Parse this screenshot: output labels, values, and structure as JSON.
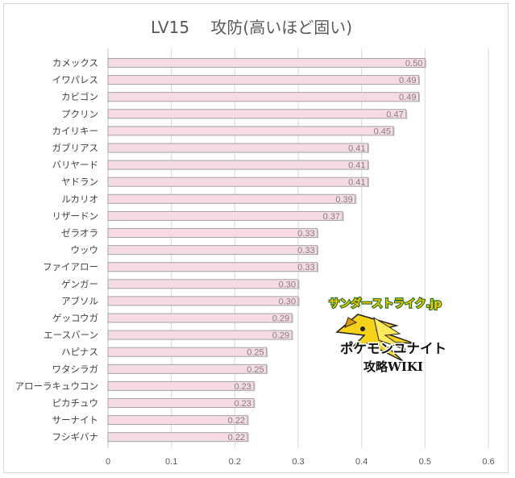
{
  "chart_data": {
    "type": "bar",
    "orientation": "horizontal",
    "title": "LV15　 攻防(高いほど固い)",
    "categories": [
      "カメックス",
      "イワパレス",
      "カビゴン",
      "プクリン",
      "カイリキー",
      "ガブリアス",
      "バリヤード",
      "ヤドラン",
      "ルカリオ",
      "リザードン",
      "ゼラオラ",
      "ウッウ",
      "ファイアロー",
      "ゲンガー",
      "アブソル",
      "ゲッコウガ",
      "エースバーン",
      "ハピナス",
      "ワタシラガ",
      "アローラキュウコン",
      "ピカチュウ",
      "サーナイト",
      "フシギバナ"
    ],
    "values": [
      0.5,
      0.49,
      0.49,
      0.47,
      0.45,
      0.41,
      0.41,
      0.41,
      0.39,
      0.37,
      0.33,
      0.33,
      0.33,
      0.3,
      0.3,
      0.29,
      0.29,
      0.25,
      0.25,
      0.23,
      0.23,
      0.22,
      0.22
    ],
    "data_labels": [
      "0.50",
      "0.49",
      "0.49",
      "0.47",
      "0.45",
      "0.41",
      "0.41",
      "0.41",
      "0.39",
      "0.37",
      "0.33",
      "0.33",
      "0.33",
      "0.30",
      "0.30",
      "0.29",
      "0.29",
      "0.25",
      "0.25",
      "0.23",
      "0.23",
      "0.22",
      "0.22"
    ],
    "xlim": [
      0,
      0.6
    ],
    "xticks": [
      0,
      0.1,
      0.2,
      0.3,
      0.4,
      0.5,
      0.6
    ],
    "xtick_labels": [
      "0",
      "0.1",
      "0.2",
      "0.3",
      "0.4",
      "0.5",
      "0.6"
    ],
    "grid": "vertical",
    "legend": "none",
    "colors": {
      "bar_fill": "#f6dbe6",
      "bar_border": "#a3a3a3",
      "grid": "#d9d9d9",
      "axis": "#bfbfbf"
    }
  },
  "watermark": {
    "site": "サンダーストライク.jp",
    "line1": "ポケモンユナイト",
    "line2": "攻略WIKI",
    "icon": "zapdos-lightning-icon"
  }
}
